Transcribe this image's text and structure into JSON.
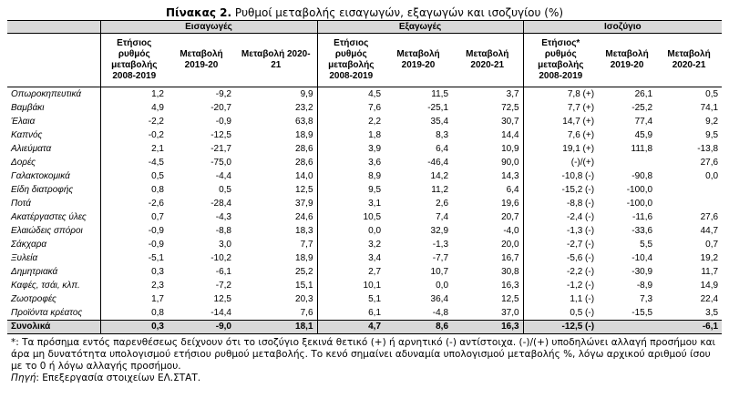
{
  "title": {
    "label": "Πίνακας 2.",
    "text": "Ρυθμοί μεταβολής εισαγωγών, εξαγωγών και ισοζυγίου (%)"
  },
  "table": {
    "groups": [
      "Εισαγωγές",
      "Εξαγωγές",
      "Ισοζύγιο"
    ],
    "columns": [
      "Ετήσιος ρυθμός μεταβολής 2008-2019",
      "Μεταβολή 2019-20",
      "Μεταβολή 2020-21",
      "Ετήσιος ρυθμός μεταβολής 2008-2019",
      "Μεταβολή 2019-20",
      "Μεταβολή 2020-21",
      "Ετήσιος* ρυθμός μεταβολής 2008-2019",
      "Μεταβολή 2019-20",
      "Μεταβολή 2020-21"
    ],
    "rows": [
      [
        "Οπωροκηπευτικά",
        "1,2",
        "-9,2",
        "9,9",
        "4,5",
        "11,5",
        "3,7",
        "7,8 (+)",
        "26,1",
        "0,5"
      ],
      [
        "Βαμβάκι",
        "4,9",
        "-20,7",
        "23,2",
        "7,6",
        "-25,1",
        "72,5",
        "7,7 (+)",
        "-25,2",
        "74,1"
      ],
      [
        "Έλαια",
        "-2,2",
        "-0,9",
        "63,8",
        "2,2",
        "35,4",
        "30,7",
        "14,7 (+)",
        "77,4",
        "9,2"
      ],
      [
        "Καπνός",
        "-0,2",
        "-12,5",
        "18,9",
        "1,8",
        "8,3",
        "14,4",
        "7,6 (+)",
        "45,9",
        "9,5"
      ],
      [
        "Αλιεύματα",
        "2,1",
        "-21,7",
        "28,6",
        "3,9",
        "6,4",
        "10,9",
        "19,1 (+)",
        "111,8",
        "-13,8"
      ],
      [
        "Δορές",
        "-4,5",
        "-75,0",
        "28,6",
        "3,6",
        "-46,4",
        "90,0",
        "(-)/(+)",
        null,
        "27,6"
      ],
      [
        "Γαλακτοκομικά",
        "0,5",
        "-4,4",
        "14,0",
        "8,9",
        "14,2",
        "14,3",
        "-10,8 (-)",
        "-90,8",
        "0,0"
      ],
      [
        "Είδη διατροφής",
        "0,8",
        "0,5",
        "12,5",
        "9,5",
        "11,2",
        "6,4",
        "-15,2 (-)",
        "-100,0",
        null
      ],
      [
        "Ποτά",
        "-2,6",
        "-28,4",
        "37,9",
        "3,1",
        "2,6",
        "19,6",
        "-8,8 (-)",
        "-100,0",
        null
      ],
      [
        "Ακατέργαστες ύλες",
        "0,7",
        "-4,3",
        "24,6",
        "10,5",
        "7,4",
        "20,7",
        "-2,4 (-)",
        "-11,6",
        "27,6"
      ],
      [
        "Ελαιώδεις σπόροι",
        "-0,9",
        "-8,8",
        "18,3",
        "0,0",
        "32,9",
        "-4,0",
        "-1,3 (-)",
        "-33,6",
        "44,7"
      ],
      [
        "Σάκχαρα",
        "-0,9",
        "3,0",
        "7,7",
        "3,2",
        "-1,3",
        "20,0",
        "-2,7 (-)",
        "5,5",
        "0,7"
      ],
      [
        "Ξυλεία",
        "-5,1",
        "-10,2",
        "18,9",
        "3,4",
        "-7,7",
        "16,7",
        "-5,6 (-)",
        "-10,4",
        "19,2"
      ],
      [
        "Δημητριακά",
        "0,3",
        "-6,1",
        "25,2",
        "2,7",
        "10,7",
        "30,8",
        "-2,2 (-)",
        "-30,9",
        "11,7"
      ],
      [
        "Καφές, τσάι, κλπ.",
        "2,3",
        "-7,2",
        "15,1",
        "10,1",
        "0,0",
        "16,3",
        "-1,2 (-)",
        "-8,9",
        "14,9"
      ],
      [
        "Ζωοτροφές",
        "1,7",
        "12,5",
        "20,3",
        "5,1",
        "36,4",
        "12,5",
        "1,1 (-)",
        "7,3",
        "22,4"
      ],
      [
        "Προϊόντα κρέατος",
        "0,8",
        "-14,4",
        "7,6",
        "6,1",
        "-4,8",
        "37,0",
        "0,5 (-)",
        "-15,5",
        "3,5"
      ]
    ],
    "total": [
      "Συνολικά",
      "0,3",
      "-9,0",
      "18,1",
      "4,7",
      "8,6",
      "16,3",
      "-12,5 (-)",
      null,
      "-6,1"
    ]
  },
  "footnote": "*: Τα πρόσημα εντός παρενθέσεως δείχνουν ότι το ισοζύγιο ξεκινά θετικό (+) ή αρνητικό (-) αντίστοιχα. (-)/(+) υποδηλώνει αλλαγή προσήμου και άρα μη δυνατότητα υπολογισμού ετήσιου ρυθμού μεταβολής. Το κενό σημαίνει αδυναμία υπολογισμού μεταβολής %, λόγω αρχικού αριθμού ίσου με το 0 ή λόγω αλλαγής προσήμου.",
  "source": {
    "label": "Πηγή",
    "text": ": Επεξεργασία στοιχείων ΕΛ.ΣΤΑΤ."
  }
}
